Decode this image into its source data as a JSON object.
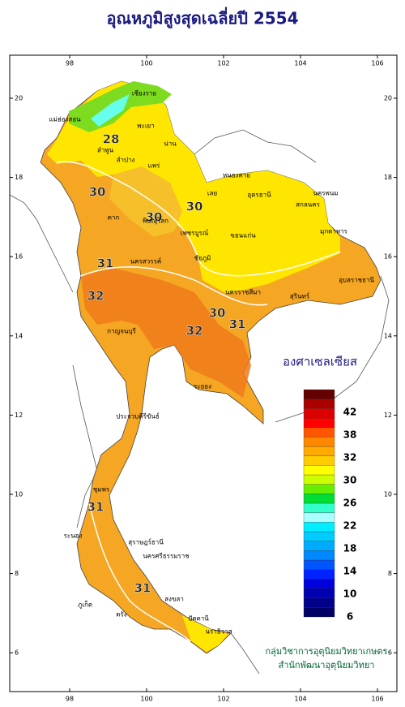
{
  "title": "อุณหภูมิสูงสุดเฉลี่ยปี 2554",
  "lon_ticks": [
    98,
    100,
    102,
    104,
    106
  ],
  "lat_ticks": [
    6,
    8,
    10,
    12,
    14,
    16,
    18,
    20
  ],
  "contour_labels": [
    28,
    30,
    30,
    30,
    31,
    32,
    32,
    30,
    31,
    31,
    31
  ],
  "places": [
    "แม่ฮ่องสอน",
    "เชียงราย",
    "พะเยา",
    "น่าน",
    "แพร่",
    "ลำปาง",
    "ลำพูน",
    "ตาก",
    "พิษณุโลก",
    "เพชรบูรณ์",
    "เลย",
    "หนองคาย",
    "อุดรธานี",
    "สกลนคร",
    "นครพนม",
    "ขอนแก่น",
    "มุกดาหาร",
    "ชัยภูมิ",
    "นครราชสีมา",
    "สุรินทร์",
    "อุบลราชธานี",
    "กาญจนบุรี",
    "นครสวรรค์",
    "ระยอง",
    "ประจวบคีรีขันธ์",
    "ชุมพร",
    "ระนอง",
    "สุราษฎร์ธานี",
    "นครศรีธรรมราช",
    "ภูเก็ต",
    "ตรัง",
    "สงขลา",
    "ปัตตานี",
    "นราธิวาส"
  ],
  "legend": {
    "title": "องศาเซลเซียส",
    "labels": [
      6,
      10,
      14,
      18,
      22,
      26,
      30,
      32,
      38,
      42
    ],
    "colors": [
      "#000066",
      "#00008b",
      "#0000b0",
      "#0000dd",
      "#0022ff",
      "#0055ff",
      "#0088ff",
      "#00aaff",
      "#00ccff",
      "#00eeff",
      "#aaffff",
      "#33ffcc",
      "#00dd33",
      "#66ee00",
      "#ccff00",
      "#ffff00",
      "#ffcc00",
      "#ffaa00",
      "#ff8800",
      "#ff5500",
      "#ff0000",
      "#dd0000",
      "#aa0000",
      "#660000"
    ]
  },
  "credits": [
    "กลุ่มวิชาการอุตุนิยมวิทยาเกษตร",
    "สำนักพัฒนาอุตุนิยมวิทยา"
  ]
}
